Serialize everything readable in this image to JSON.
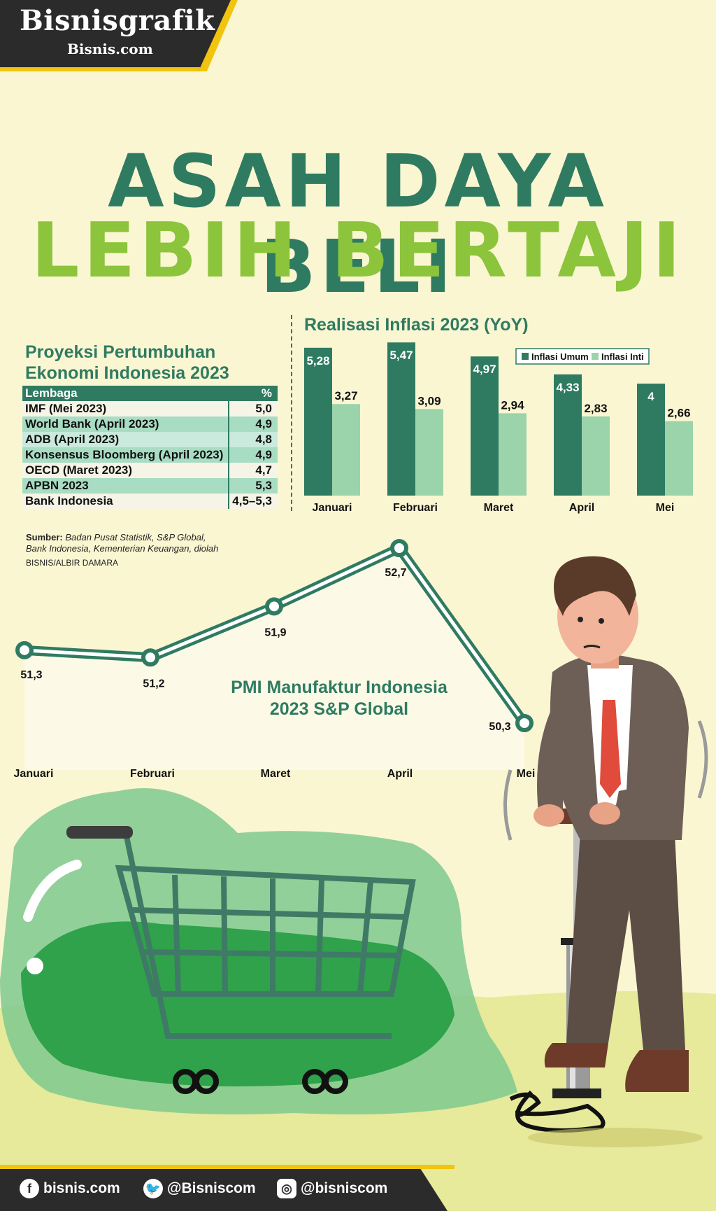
{
  "brand": {
    "name": "Bisnisgrafik",
    "sub": "Bisnis.com"
  },
  "title": {
    "line1": "ASAH DAYA BELI",
    "line2": "LEBIH BERTAJI"
  },
  "colors": {
    "dark_green": "#2f7b62",
    "light_green": "#9bd3ab",
    "lime": "#8cc43c",
    "background": "#faf6d2"
  },
  "growth_table": {
    "title_line1": "Proyeksi Pertumbuhan",
    "title_line2": "Ekonomi Indonesia 2023",
    "header": {
      "institution": "Lembaga",
      "value": "%"
    },
    "rows": [
      {
        "institution": "IMF (Mei 2023)",
        "value": "5,0"
      },
      {
        "institution": "World Bank (April 2023)",
        "value": "4,9"
      },
      {
        "institution": "ADB (April 2023)",
        "value": "4,8"
      },
      {
        "institution": "Konsensus Bloomberg (April 2023)",
        "value": "4,9"
      },
      {
        "institution": "OECD (Maret 2023)",
        "value": "4,7"
      },
      {
        "institution": "APBN 2023",
        "value": "5,3"
      },
      {
        "institution": "Bank Indonesia",
        "value": "4,5–5,3"
      }
    ]
  },
  "chart_data": [
    {
      "type": "bar",
      "title": "Realisasi Inflasi 2023 (YoY)",
      "categories": [
        "Januari",
        "Februari",
        "Maret",
        "April",
        "Mei"
      ],
      "series": [
        {
          "name": "Inflasi Umum",
          "values": [
            5.28,
            5.47,
            4.97,
            4.33,
            4.0
          ],
          "labels": [
            "5,28",
            "5,47",
            "4,97",
            "4,33",
            "4"
          ],
          "color": "#2f7b62"
        },
        {
          "name": "Inflasi Inti",
          "values": [
            3.27,
            3.09,
            2.94,
            2.83,
            2.66
          ],
          "labels": [
            "3,27",
            "3,09",
            "2,94",
            "2,83",
            "2,66"
          ],
          "color": "#9bd3ab"
        }
      ],
      "legend": "top-right",
      "grid": false
    },
    {
      "type": "line",
      "title_line1": "PMI Manufaktur Indonesia",
      "title_line2": "2023 S&P Global",
      "categories": [
        "Januari",
        "Februari",
        "Maret",
        "April",
        "Mei"
      ],
      "series": [
        {
          "values": [
            51.3,
            51.2,
            51.9,
            52.7,
            50.3
          ],
          "labels": [
            "51,3",
            "51,2",
            "51,9",
            "52,7",
            "50,3"
          ],
          "color": "#2f7b62"
        }
      ],
      "grid": false
    }
  ],
  "sources": {
    "label": "Sumber:",
    "text_line1": "Badan Pusat Statistik, S&P Global,",
    "text_line2": "Bank Indonesia, Kementerian Keuangan, diolah",
    "credit": "BISNIS/ALBIR DAMARA"
  },
  "footer": {
    "facebook": "bisnis.com",
    "twitter": "@Bisniscom",
    "instagram": "@bisniscom"
  }
}
